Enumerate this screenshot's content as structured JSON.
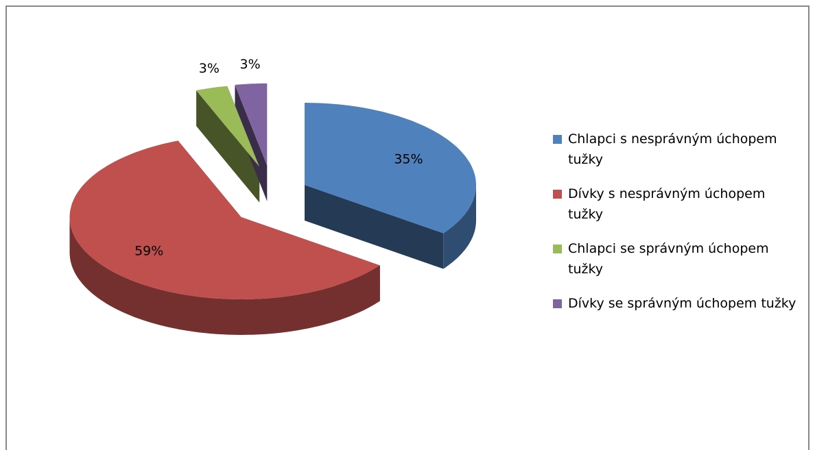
{
  "chart_data": {
    "type": "pie",
    "categories": [
      "Chlapci s nesprávným úchopem tužky",
      "Dívky s nesprávným úchopem tužky",
      "Chlapci se správným úchopem tužky",
      "Dívky se správným úchopem tužky"
    ],
    "values": [
      35,
      59,
      3,
      3
    ],
    "value_labels": [
      "35%",
      "59%",
      "3%",
      "3%"
    ],
    "colors": [
      "#4f81bd",
      "#c0504d",
      "#9bbb59",
      "#8064a2"
    ],
    "legend": "right"
  }
}
